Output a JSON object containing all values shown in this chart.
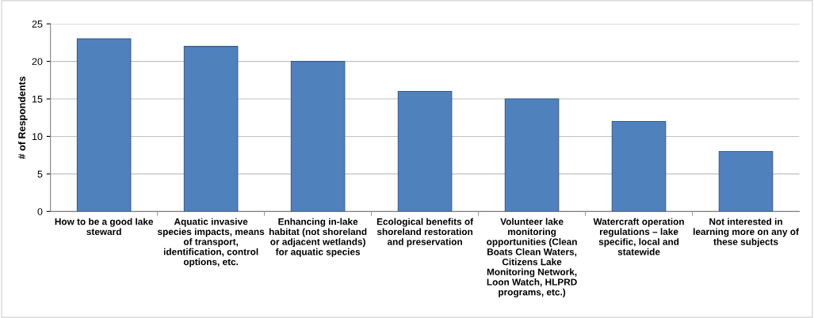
{
  "chart_data": {
    "type": "bar",
    "ylabel": "# of Respondents",
    "categories": [
      "How to be a good lake steward",
      "Aquatic invasive species impacts, means of transport, identification, control options, etc.",
      "Enhancing in-lake habitat (not shoreland or adjacent wetlands) for aquatic species",
      "Ecological benefits of shoreland restoration and preservation",
      "Volunteer lake monitoring opportunities (Clean Boats Clean Waters, Citizens Lake Monitoring Network, Loon Watch, HLPRD programs, etc.)",
      "Watercraft operation regulations – lake specific, local and statewide",
      "Not interested in learning more on any of these subjects"
    ],
    "values": [
      23,
      22,
      20,
      16,
      15,
      12,
      8
    ],
    "color": "#4f81bd",
    "ylim": [
      0,
      25
    ],
    "yticks": [
      0,
      5,
      10,
      15,
      20,
      25
    ],
    "grid": "y"
  }
}
